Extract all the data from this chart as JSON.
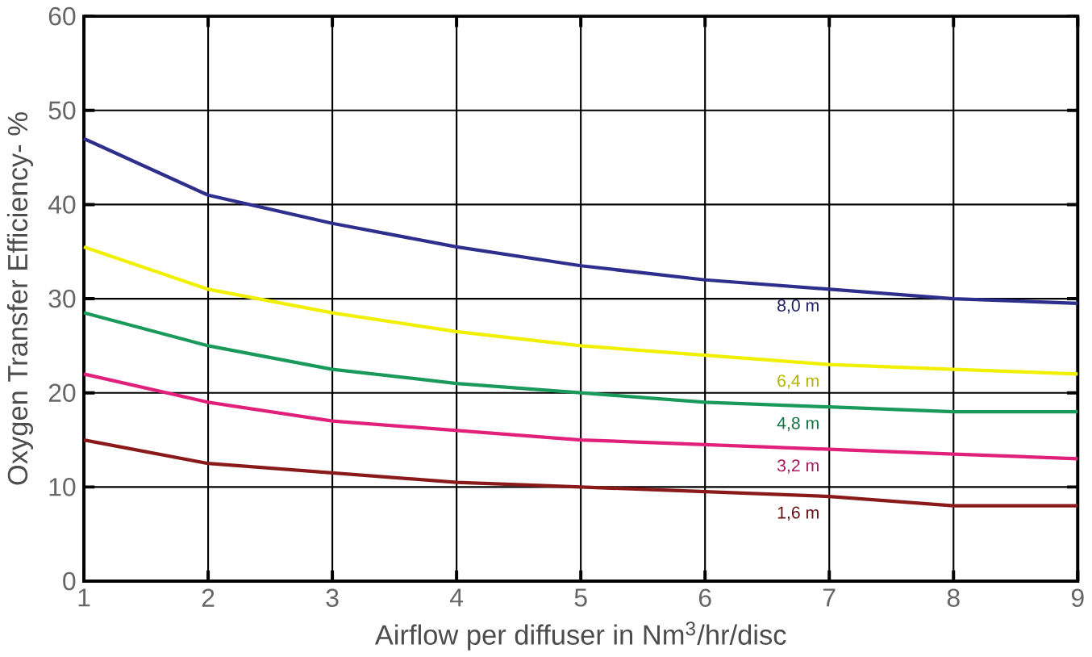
{
  "chart_data": {
    "type": "line",
    "xlabel": "Airflow per diffuser in Nm$^{3}$/hr/disc",
    "ylabel": "Oxygen Transfer Efficiency- %",
    "x": [
      1,
      2,
      3,
      4,
      5,
      6,
      7,
      8,
      9
    ],
    "series": [
      {
        "name": "8,0 m",
        "color": "#2e2e8c",
        "values": [
          47,
          41,
          38,
          35.5,
          33.5,
          32,
          31,
          30,
          29.5
        ]
      },
      {
        "name": "6,4 m",
        "color": "#f0f000",
        "values": [
          35.5,
          31,
          28.5,
          26.5,
          25,
          24,
          23,
          22.5,
          22
        ]
      },
      {
        "name": "4,8 m",
        "color": "#1a9a5a",
        "values": [
          28.5,
          25,
          22.5,
          21,
          20,
          19,
          18.5,
          18,
          18
        ]
      },
      {
        "name": "3,2 m",
        "color": "#e0207a",
        "values": [
          22,
          19,
          17,
          16,
          15,
          14.5,
          14,
          13.5,
          13
        ]
      },
      {
        "name": "1,6 m",
        "color": "#8a1a1a",
        "values": [
          15,
          12.5,
          11.5,
          10.5,
          10,
          9.5,
          9,
          8,
          8
        ]
      }
    ],
    "xlim": [
      1,
      9
    ],
    "ylim": [
      0,
      60
    ],
    "xticks": [
      1,
      2,
      3,
      4,
      5,
      6,
      7,
      8,
      9
    ],
    "yticks": [
      0,
      10,
      20,
      30,
      40,
      50,
      60
    ],
    "grid": true,
    "marker": "none",
    "line_style": "solid"
  }
}
